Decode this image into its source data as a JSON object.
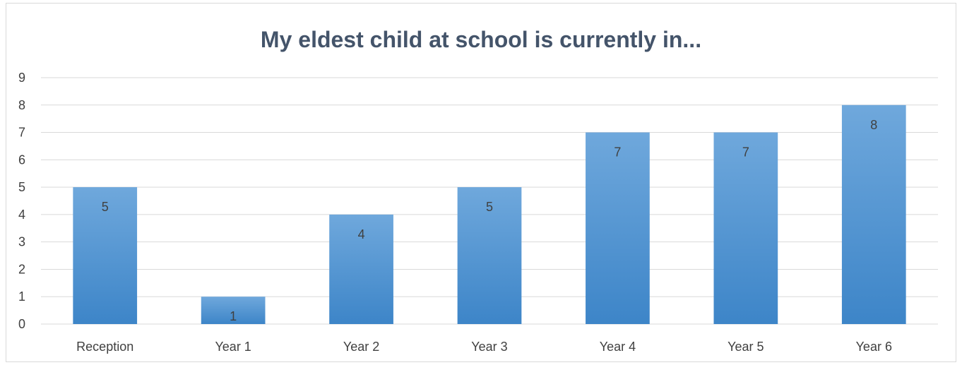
{
  "chart_data": {
    "type": "bar",
    "title": "My eldest child at school is currently in...",
    "xlabel": "",
    "ylabel": "",
    "categories": [
      "Reception",
      "Year 1",
      "Year 2",
      "Year 3",
      "Year 4",
      "Year 5",
      "Year 6"
    ],
    "values": [
      5,
      1,
      4,
      5,
      7,
      7,
      8
    ],
    "data_labels": [
      "5",
      "1",
      "4",
      "5",
      "7",
      "7",
      "8"
    ],
    "ylim": [
      0,
      9
    ],
    "y_ticks": [
      "0",
      "1",
      "2",
      "3",
      "4",
      "5",
      "6",
      "7",
      "8",
      "9"
    ],
    "grid": true,
    "legend": "none",
    "colors": {
      "bar_top": "#6fa8dc",
      "bar_bottom": "#3d85c8",
      "gridline": "#d9d9d9",
      "title": "#44546a",
      "text": "#404040"
    }
  }
}
